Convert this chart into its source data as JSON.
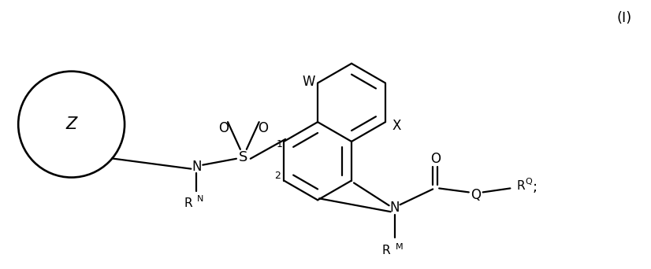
{
  "background_color": "#ffffff",
  "line_color": "#000000",
  "line_width": 1.6,
  "font_size": 12,
  "fig_width": 8.26,
  "fig_height": 3.42,
  "label_I": "(I)",
  "label_Z": "Z",
  "label_W": "W",
  "label_X": "X",
  "label_N1": "N",
  "label_N2": "N",
  "label_S": "S",
  "label_O1": "O",
  "label_O2": "O",
  "label_O3": "O",
  "label_RN": "R",
  "label_RN_sup": "N",
  "label_RM": "R",
  "label_RM_sup": "M",
  "label_RQ": "R",
  "label_RQ_sup": "Q",
  "label_Q": "Q",
  "label_semi": ";"
}
